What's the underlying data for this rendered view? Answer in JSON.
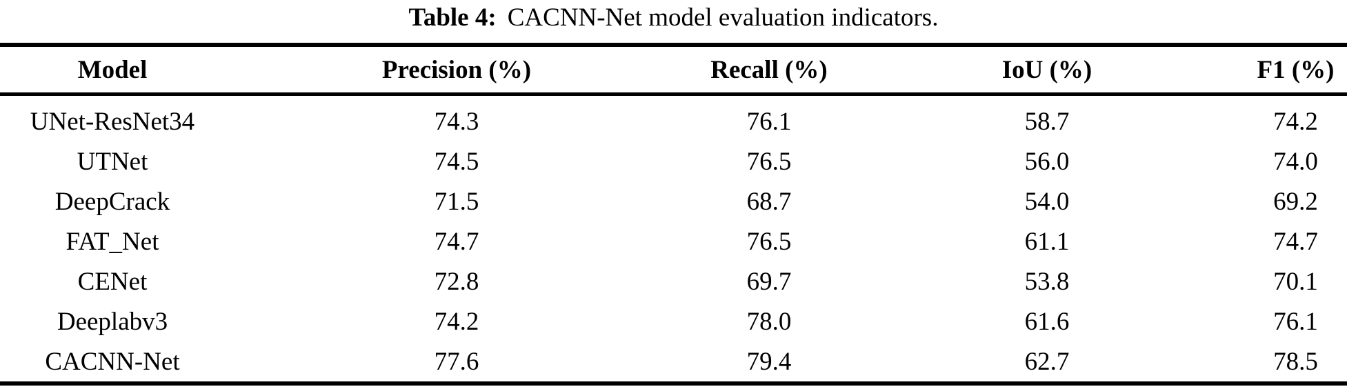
{
  "title": {
    "label": "Table 4:",
    "text": "CACNN-Net model evaluation indicators."
  },
  "table": {
    "columns": [
      "Model",
      "Precision (%)",
      "Recall (%)",
      "IoU (%)",
      "F1 (%)"
    ],
    "rows": [
      {
        "model": "UNet-ResNet34",
        "precision": "74.3",
        "recall": "76.1",
        "iou": "58.7",
        "f1": "74.2"
      },
      {
        "model": "UTNet",
        "precision": "74.5",
        "recall": "76.5",
        "iou": "56.0",
        "f1": "74.0"
      },
      {
        "model": "DeepCrack",
        "precision": "71.5",
        "recall": "68.7",
        "iou": "54.0",
        "f1": "69.2"
      },
      {
        "model": "FAT_Net",
        "precision": "74.7",
        "recall": "76.5",
        "iou": "61.1",
        "f1": "74.7"
      },
      {
        "model": "CENet",
        "precision": "72.8",
        "recall": "69.7",
        "iou": "53.8",
        "f1": "70.1"
      },
      {
        "model": "Deeplabv3",
        "precision": "74.2",
        "recall": "78.0",
        "iou": "61.6",
        "f1": "76.1"
      },
      {
        "model": "CACNN-Net",
        "precision": "77.6",
        "recall": "79.4",
        "iou": "62.7",
        "f1": "78.5"
      }
    ]
  },
  "colors": {
    "text": "#000000",
    "background": "#ffffff",
    "rule": "#000000"
  }
}
